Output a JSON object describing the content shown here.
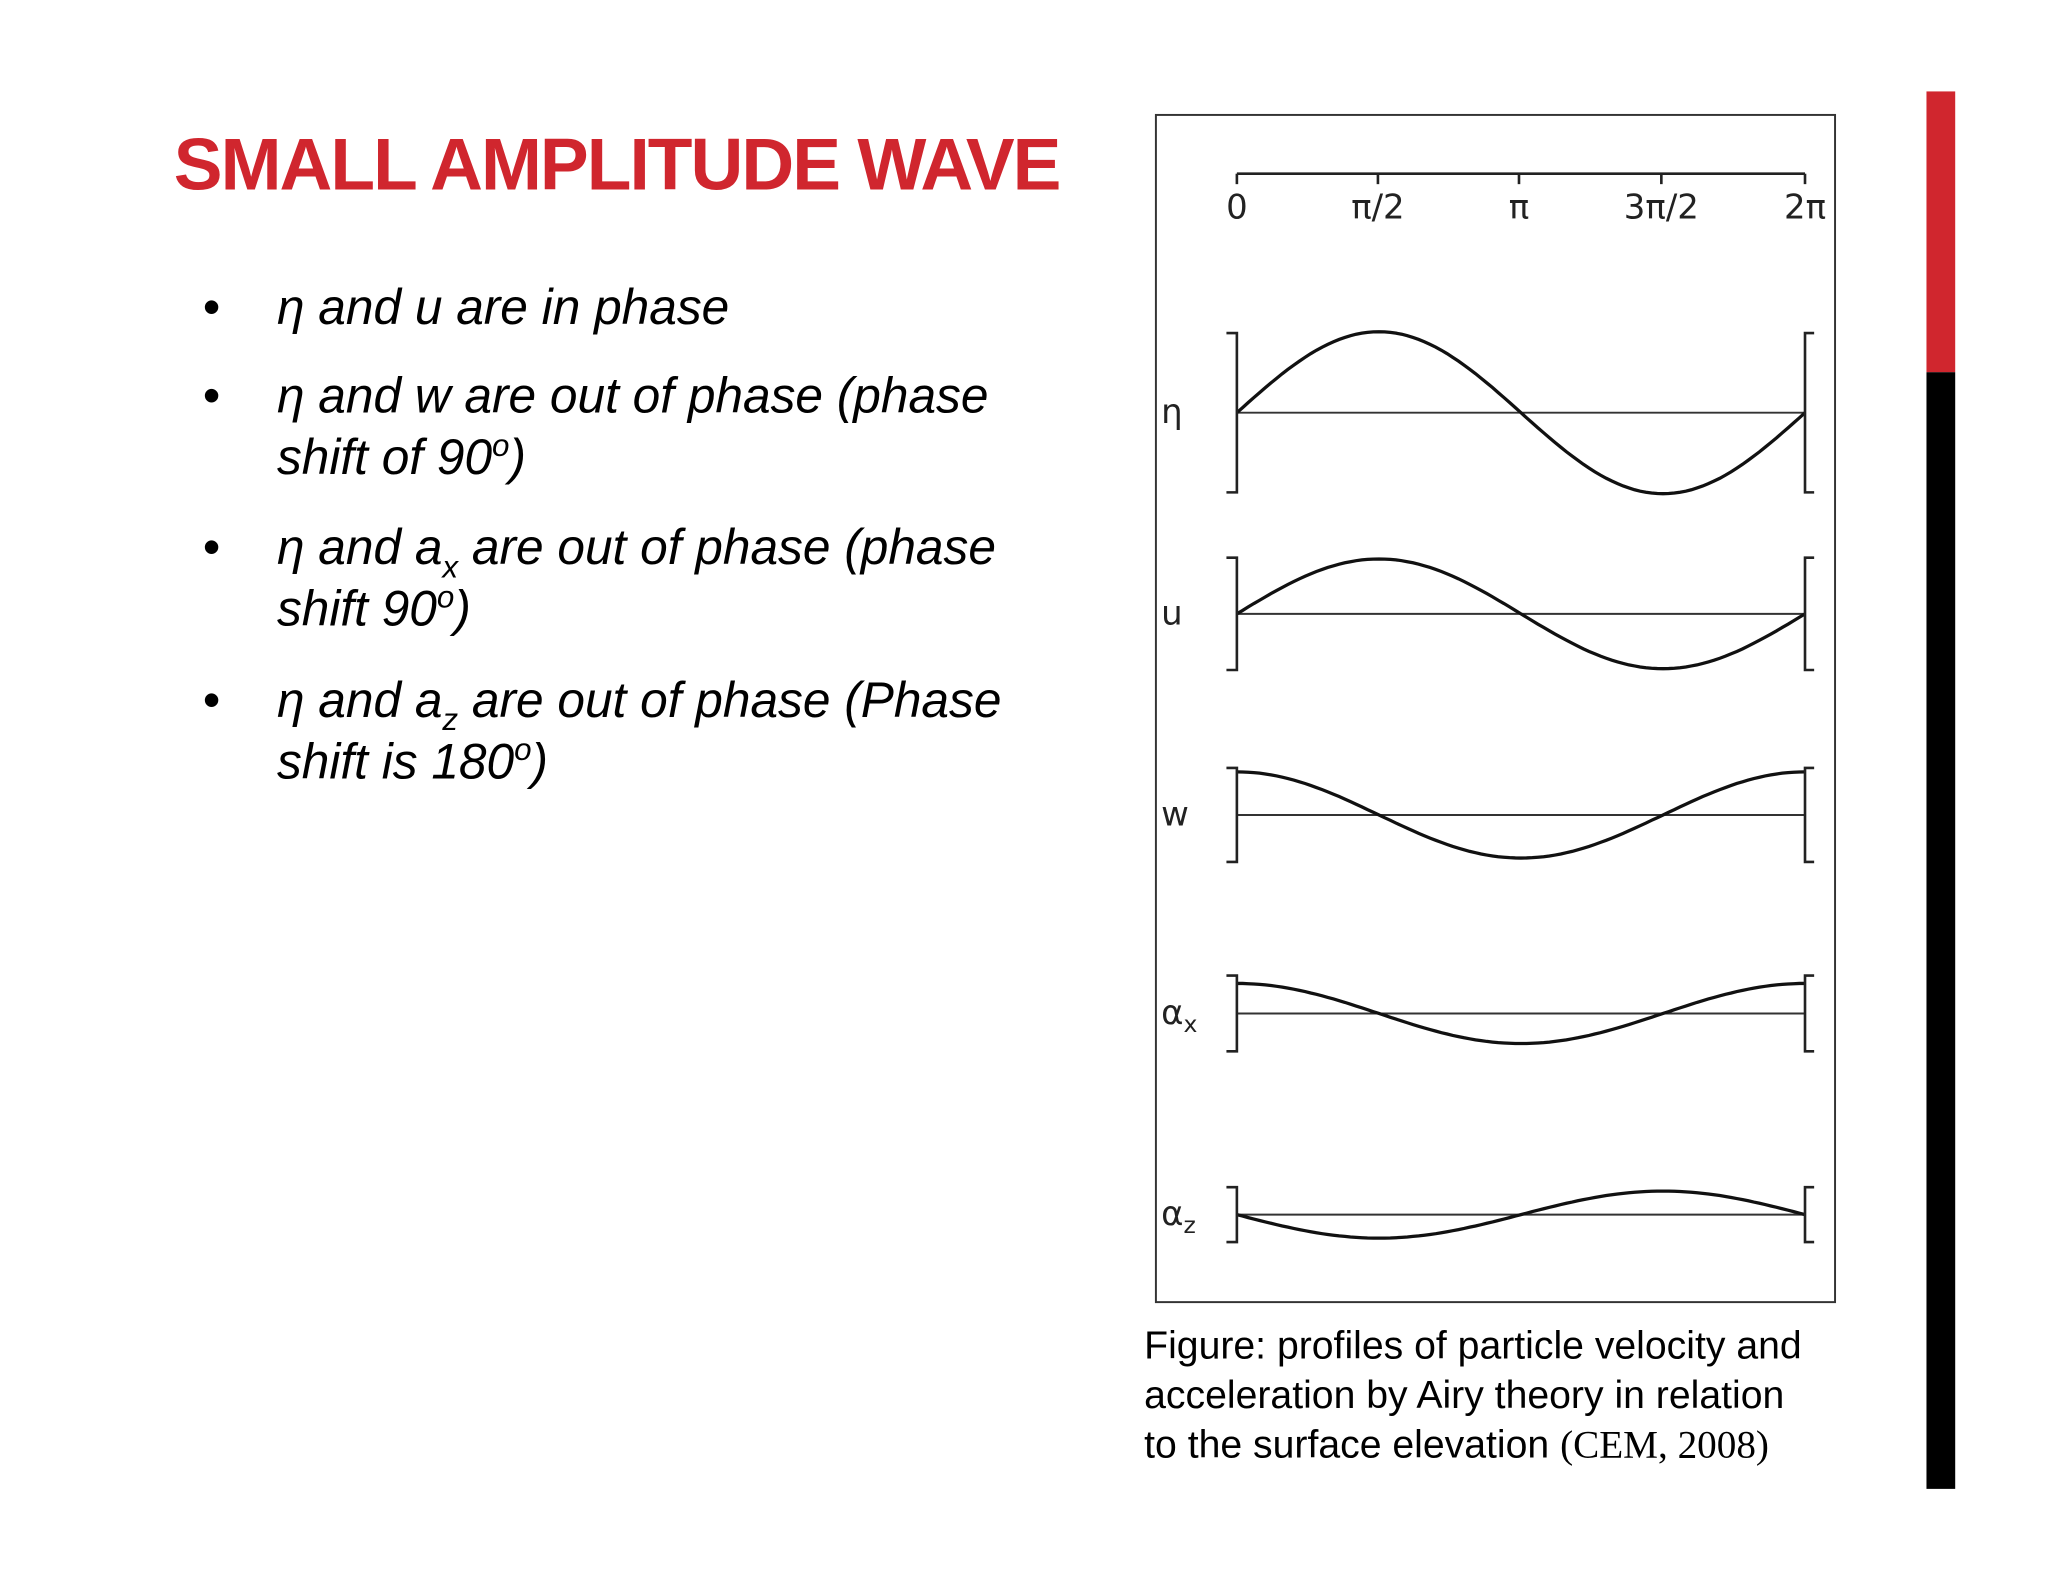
{
  "title": "SMALL AMPLITUDE WAVE",
  "bullets": [
    {
      "line1": "η and u are in phase"
    },
    {
      "line1": "η and w are out of phase (phase",
      "line2": "shift of 90",
      "sup": "o",
      "end": ")"
    },
    {
      "line1": "η and a",
      "sub": "x",
      "line1_rest": " are out of phase (phase",
      "line2": "shift 90",
      "sup": "o",
      "end": ")"
    },
    {
      "line1": "η and a",
      "sub": "z",
      "line1_rest": " are out of phase (Phase",
      "line2": "shift is 180",
      "sup": "o",
      "end": ")"
    }
  ],
  "figure": {
    "axis_labels": [
      "0",
      "π/2",
      "π",
      "3π/2",
      "2π"
    ],
    "curve_labels": [
      {
        "symbol": "η"
      },
      {
        "symbol": "u"
      },
      {
        "symbol": "w"
      },
      {
        "symbol": "α",
        "sub": "x"
      },
      {
        "symbol": "α",
        "sub": "z"
      }
    ]
  },
  "caption": {
    "line1": "Figure: profiles of particle velocity and",
    "line2": "acceleration by Airy theory in relation",
    "line3": "to the surface elevation ",
    "source": "(CEM, 2008)"
  }
}
